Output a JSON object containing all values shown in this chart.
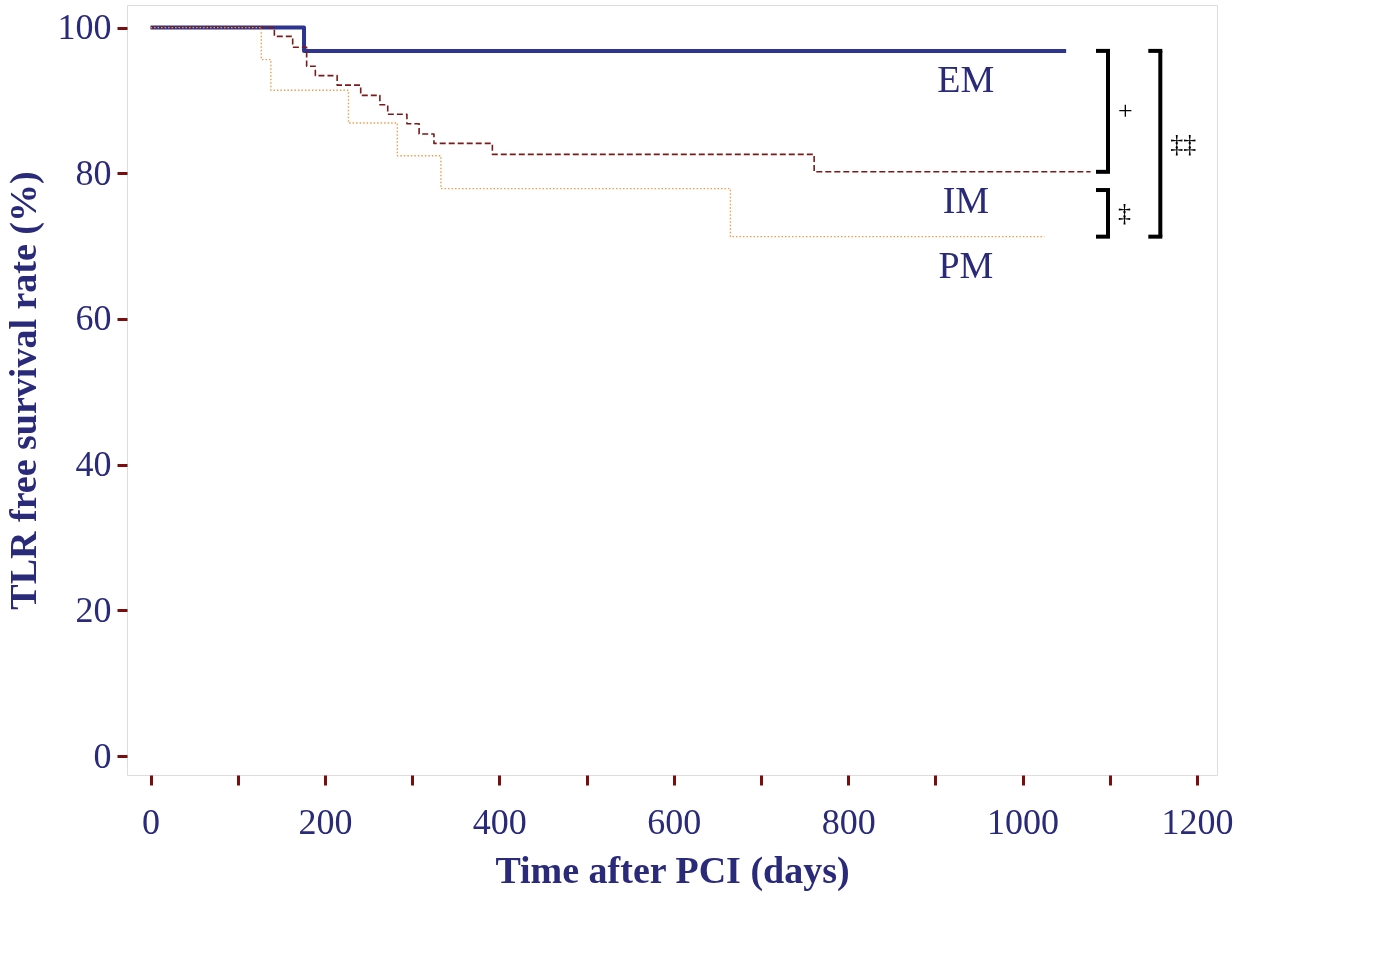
{
  "chart_data": {
    "type": "step",
    "xlabel": "Time after PCI (days)",
    "ylabel": "TLR free survival rate (%)",
    "xlim": [
      -27,
      1223
    ],
    "ylim": [
      -2.6,
      103.1
    ],
    "xticks": [
      0,
      {
        "value": 100,
        "label": null
      },
      200,
      {
        "value": 300,
        "label": null
      },
      400,
      {
        "value": 500,
        "label": null
      },
      600,
      {
        "value": 700,
        "label": null
      },
      800,
      {
        "value": 900,
        "label": null
      },
      1000,
      {
        "value": 1100,
        "label": null
      },
      1200
    ],
    "yticks": [
      0,
      20,
      40,
      60,
      80,
      100
    ],
    "grid": false,
    "series": [
      {
        "name": "EM",
        "color": "#2e3590",
        "line_style": "solid",
        "x": [
          0,
          176,
          1050
        ],
        "values": [
          100,
          96.8,
          96.8
        ]
      },
      {
        "name": "IM",
        "color": "#7a1a1a",
        "line_style": "dashed",
        "x": [
          0,
          142,
          163,
          179,
          189,
          214,
          241,
          263,
          272,
          294,
          308,
          325,
          392,
          761,
          1078
        ],
        "values": [
          100,
          98.8,
          97.3,
          94.7,
          93.4,
          92.1,
          90.7,
          89.4,
          88.1,
          86.8,
          85.4,
          84.1,
          82.6,
          80.2,
          80.2
        ]
      },
      {
        "name": "PM",
        "color": "#e8a050",
        "line_style": "dotted",
        "x": [
          0,
          127,
          138,
          227,
          283,
          333,
          665,
          1025
        ],
        "values": [
          100,
          95.6,
          91.4,
          86.9,
          82.4,
          77.9,
          71.3,
          71.3
        ]
      }
    ],
    "annotations": [
      "+",
      "‡",
      "‡‡"
    ]
  }
}
